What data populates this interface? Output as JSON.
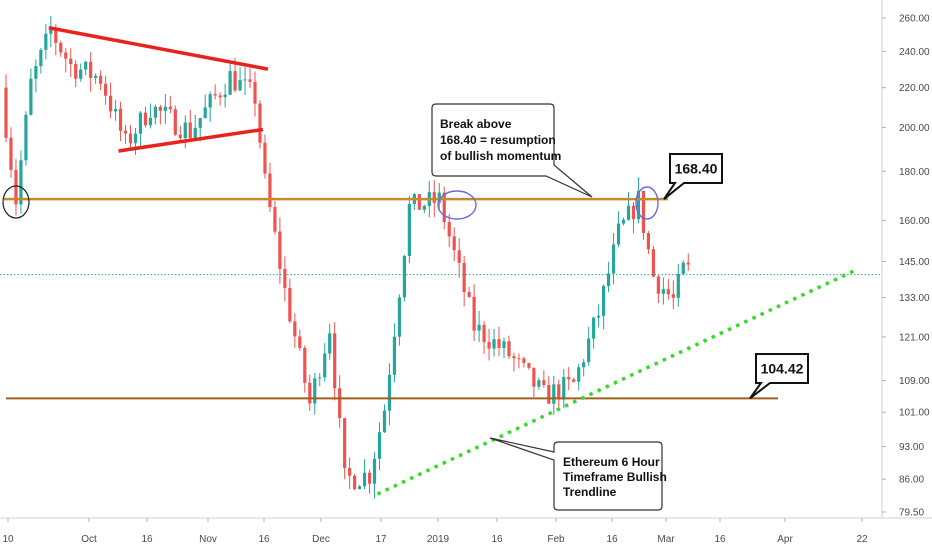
{
  "chart_data": {
    "type": "candlestick",
    "title": "",
    "x_tick_labels": [
      "10",
      "Oct",
      "16",
      "Nov",
      "16",
      "Dec",
      "17",
      "2019",
      "16",
      "Feb",
      "16",
      "Mar",
      "16",
      "Apr",
      "22"
    ],
    "y_tick_labels": [
      260.0,
      240.0,
      220.0,
      200.0,
      180.0,
      160.0,
      145.0,
      133.0,
      121.0,
      109.0,
      101.0,
      93.0,
      86.0,
      79.5
    ],
    "y_scale": "log",
    "ylim": [
      78,
      270
    ],
    "current_price_line": 140.5,
    "horizontal_levels": [
      {
        "value": 168.4,
        "label": "168.40",
        "color": "#c8892e"
      },
      {
        "value": 104.42,
        "label": "104.42",
        "color": "#a0601e"
      }
    ],
    "annotations": [
      {
        "id": "callout-break",
        "lines": [
          "Break above",
          "168.40 = resumption",
          "of bullish momentum"
        ]
      },
      {
        "id": "callout-trend",
        "lines": [
          "Ethereum 6 Hour",
          "Timeframe Bullish",
          "Trendline"
        ]
      }
    ],
    "trendlines": [
      {
        "name": "triangle-upper",
        "color": "#e8231d",
        "from": {
          "x_index": 9,
          "y": 254
        },
        "to": {
          "x_index": 53,
          "y": 230
        }
      },
      {
        "name": "triangle-lower",
        "color": "#e8231d",
        "from": {
          "x_index": 23,
          "y": 189
        },
        "to": {
          "x_index": 52,
          "y": 199
        }
      },
      {
        "name": "bullish-trendline",
        "color": "#39d92c",
        "style": "dotted",
        "from": {
          "x_index": 75,
          "y": 83
        },
        "to": {
          "x_index": 171,
          "y": 142
        }
      }
    ],
    "candle_count": 138,
    "key_price_path": [
      {
        "i": 0,
        "p": 220
      },
      {
        "i": 3,
        "p": 168
      },
      {
        "i": 6,
        "p": 222
      },
      {
        "i": 10,
        "p": 252
      },
      {
        "i": 14,
        "p": 232
      },
      {
        "i": 20,
        "p": 225
      },
      {
        "i": 25,
        "p": 192
      },
      {
        "i": 30,
        "p": 210
      },
      {
        "i": 38,
        "p": 198
      },
      {
        "i": 46,
        "p": 226
      },
      {
        "i": 51,
        "p": 215
      },
      {
        "i": 53,
        "p": 175
      },
      {
        "i": 57,
        "p": 135
      },
      {
        "i": 62,
        "p": 103
      },
      {
        "i": 66,
        "p": 124
      },
      {
        "i": 69,
        "p": 86
      },
      {
        "i": 74,
        "p": 87
      },
      {
        "i": 77,
        "p": 102
      },
      {
        "i": 82,
        "p": 165
      },
      {
        "i": 88,
        "p": 168
      },
      {
        "i": 95,
        "p": 124
      },
      {
        "i": 102,
        "p": 116
      },
      {
        "i": 109,
        "p": 105
      },
      {
        "i": 115,
        "p": 108
      },
      {
        "i": 120,
        "p": 128
      },
      {
        "i": 124,
        "p": 155
      },
      {
        "i": 128,
        "p": 168
      },
      {
        "i": 131,
        "p": 140
      },
      {
        "i": 135,
        "p": 132
      },
      {
        "i": 137,
        "p": 142
      }
    ],
    "colors": {
      "up": "#26a69a",
      "down": "#ef5350",
      "current_line": "#26a69a",
      "ellipse": "#6a6ae0",
      "callout_fill": "#ffffff"
    }
  }
}
